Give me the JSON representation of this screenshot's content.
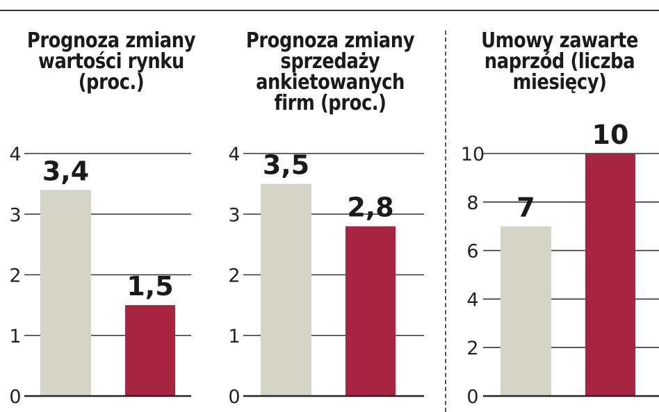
{
  "chart_data": [
    {
      "type": "bar",
      "title": "Prognoza zmiany wartości rynku (proc.)",
      "categories": [
        "",
        ""
      ],
      "values": [
        3.4,
        1.5
      ],
      "value_labels": [
        "3,4",
        "1,5"
      ],
      "bar_colors": [
        "#d4d4c7",
        "#a82542"
      ],
      "ylim": [
        0,
        4
      ],
      "yticks": [
        0,
        1,
        2,
        3,
        4
      ],
      "grid": true
    },
    {
      "type": "bar",
      "title": "Prognoza zmiany sprzedaży ankietowanych firm (proc.)",
      "categories": [
        "",
        ""
      ],
      "values": [
        3.5,
        2.8
      ],
      "value_labels": [
        "3,5",
        "2,8"
      ],
      "bar_colors": [
        "#d4d4c7",
        "#a82542"
      ],
      "ylim": [
        0,
        4
      ],
      "yticks": [
        0,
        1,
        2,
        3,
        4
      ],
      "grid": true
    },
    {
      "type": "bar",
      "title": "Umowy zawarte naprzód (liczba miesięcy)",
      "categories": [
        "",
        ""
      ],
      "values": [
        7,
        10
      ],
      "value_labels": [
        "7",
        "10"
      ],
      "bar_colors": [
        "#d4d4c7",
        "#a82542"
      ],
      "ylim": [
        0,
        10
      ],
      "yticks": [
        0,
        2,
        4,
        6,
        8,
        10
      ],
      "grid": true
    }
  ]
}
